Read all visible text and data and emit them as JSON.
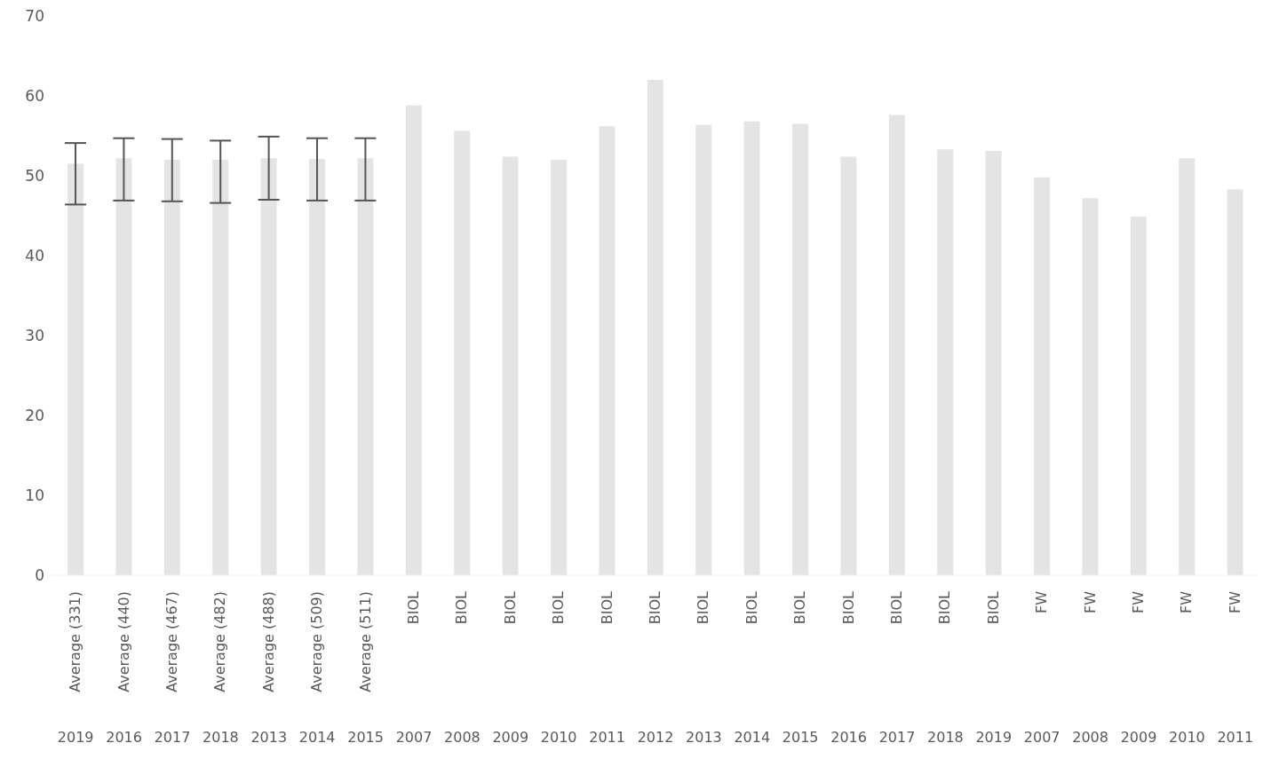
{
  "chart_data": {
    "type": "bar",
    "categories": [
      "Average (331)\n2019",
      "Average (440)\n2016",
      "Average (467)\n2017",
      "Average (482)\n2018",
      "Average (488)\n2013",
      "Average (509)\n2014",
      "Average (511)\n2015",
      "BIOL\n2007",
      "BIOL\n2008",
      "BIOL\n2009",
      "BIOL\n2010",
      "BIOL\n2011",
      "BIOL\n2012",
      "BIOL\n2013",
      "BIOL\n2014",
      "BIOL\n2015",
      "BIOL\n2016",
      "BIOL\n2017",
      "BIOL\n2018",
      "BIOL\n2019",
      "FW\n2007",
      "FW\n2008",
      "FW\n2009",
      "FW\n2010",
      "FW\n2011"
    ],
    "values": [
      51.5,
      52.2,
      52.0,
      52.0,
      52.2,
      52.1,
      52.2,
      58.8,
      55.6,
      52.4,
      52.0,
      56.2,
      62.0,
      56.4,
      56.8,
      56.5,
      52.4,
      57.6,
      53.3,
      53.1,
      49.8,
      47.2,
      44.9,
      52.2,
      48.3
    ],
    "errors": [
      [
        46.4,
        54.1
      ],
      [
        46.9,
        54.7
      ],
      [
        46.8,
        54.6
      ],
      [
        46.6,
        54.4
      ],
      [
        47.0,
        54.9
      ],
      [
        46.9,
        54.7
      ],
      [
        46.9,
        54.7
      ],
      null,
      null,
      null,
      null,
      null,
      null,
      null,
      null,
      null,
      null,
      null,
      null,
      null,
      null,
      null,
      null,
      null,
      null
    ],
    "color": "#e4e4e4",
    "ylim": [
      0,
      70
    ],
    "yticks": [
      0,
      10,
      20,
      30,
      40,
      50,
      60,
      70
    ],
    "grid": false,
    "legend": false
  }
}
